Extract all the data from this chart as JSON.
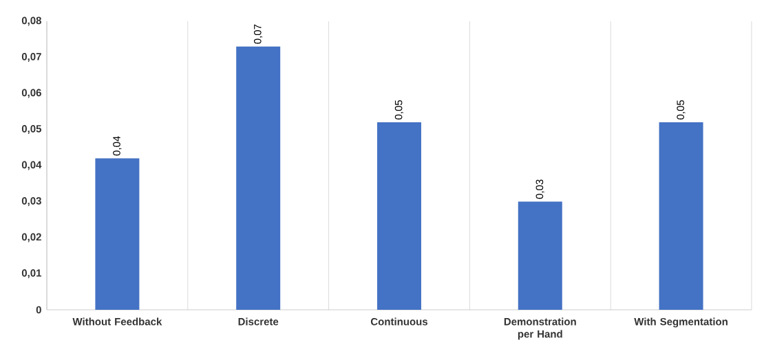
{
  "chart_data": {
    "type": "bar",
    "categories": [
      "Without Feedback",
      "Discrete",
      "Continuous",
      "Demonstration per Hand",
      "With Segmentation"
    ],
    "values": [
      0.042,
      0.073,
      0.052,
      0.03,
      0.052
    ],
    "value_labels": [
      "0,04",
      "0,07",
      "0,05",
      "0,03",
      "0,05"
    ],
    "color": "#4472c4",
    "ylim": [
      0,
      0.08
    ],
    "yticks": [
      {
        "value": 0,
        "label": "0"
      },
      {
        "value": 0.01,
        "label": "0,01"
      },
      {
        "value": 0.02,
        "label": "0,02"
      },
      {
        "value": 0.03,
        "label": "0,03"
      },
      {
        "value": 0.04,
        "label": "0,04"
      },
      {
        "value": 0.05,
        "label": "0,05"
      },
      {
        "value": 0.06,
        "label": "0,06"
      },
      {
        "value": 0.07,
        "label": "0,07"
      },
      {
        "value": 0.08,
        "label": "0,08"
      }
    ],
    "grid": "x"
  }
}
